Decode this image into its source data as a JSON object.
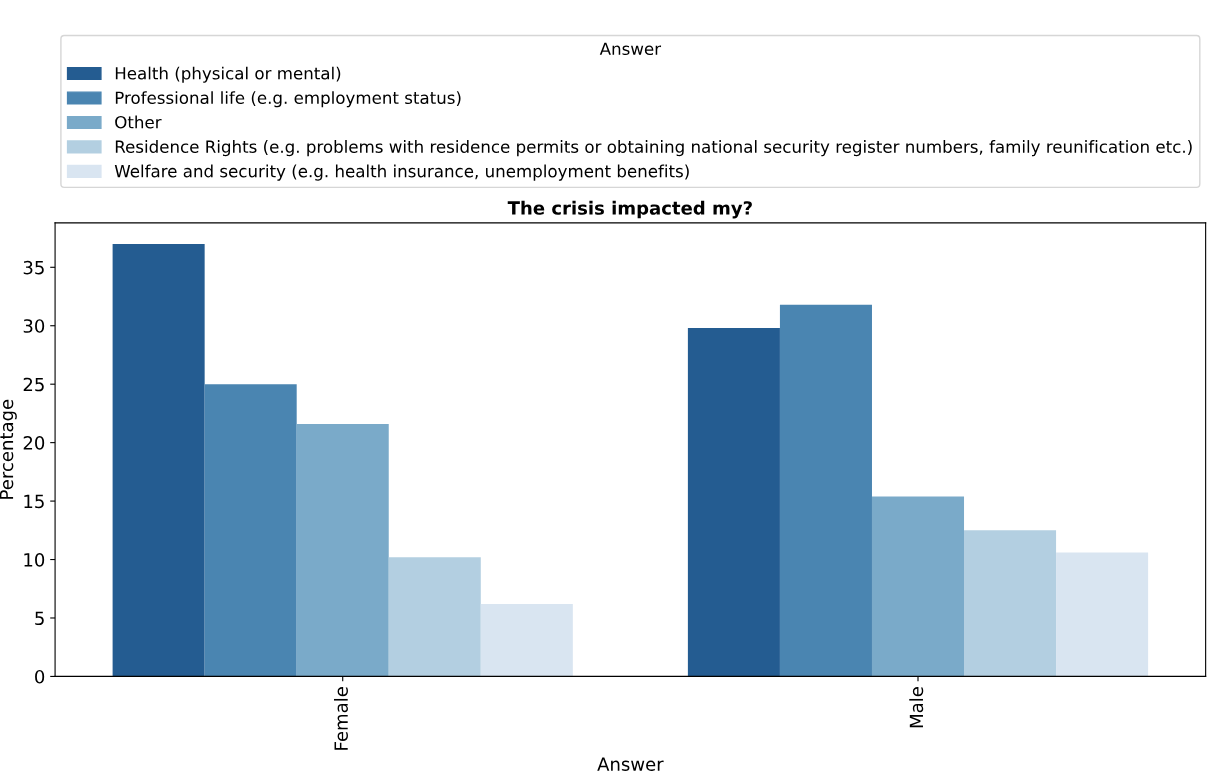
{
  "chart_data": {
    "type": "bar",
    "title": "The crisis impacted my?",
    "xlabel": "Answer",
    "ylabel": "Percentage",
    "legend_title": "Answer",
    "categories": [
      "Female",
      "Male"
    ],
    "series": [
      {
        "name": "Health (physical or mental)",
        "color": "#245c91",
        "values": [
          37.0,
          29.8
        ]
      },
      {
        "name": "Professional life (e.g. employment status)",
        "color": "#4a85b1",
        "values": [
          25.0,
          31.8
        ]
      },
      {
        "name": "Other",
        "color": "#7aaac9",
        "values": [
          21.6,
          15.4
        ]
      },
      {
        "name": "Residence Rights (e.g. problems with residence permits or obtaining national security register numbers, family reunification etc.)",
        "color": "#b3cfe1",
        "values": [
          10.2,
          12.5
        ]
      },
      {
        "name": "Welfare and security (e.g. health insurance, unemployment benefits)",
        "color": "#d9e5f1",
        "values": [
          6.2,
          10.6
        ]
      }
    ],
    "ylim": [
      0,
      38.8
    ],
    "yticks": [
      0,
      5,
      10,
      15,
      20,
      25,
      30,
      35
    ],
    "grid": false,
    "legend": "top"
  }
}
